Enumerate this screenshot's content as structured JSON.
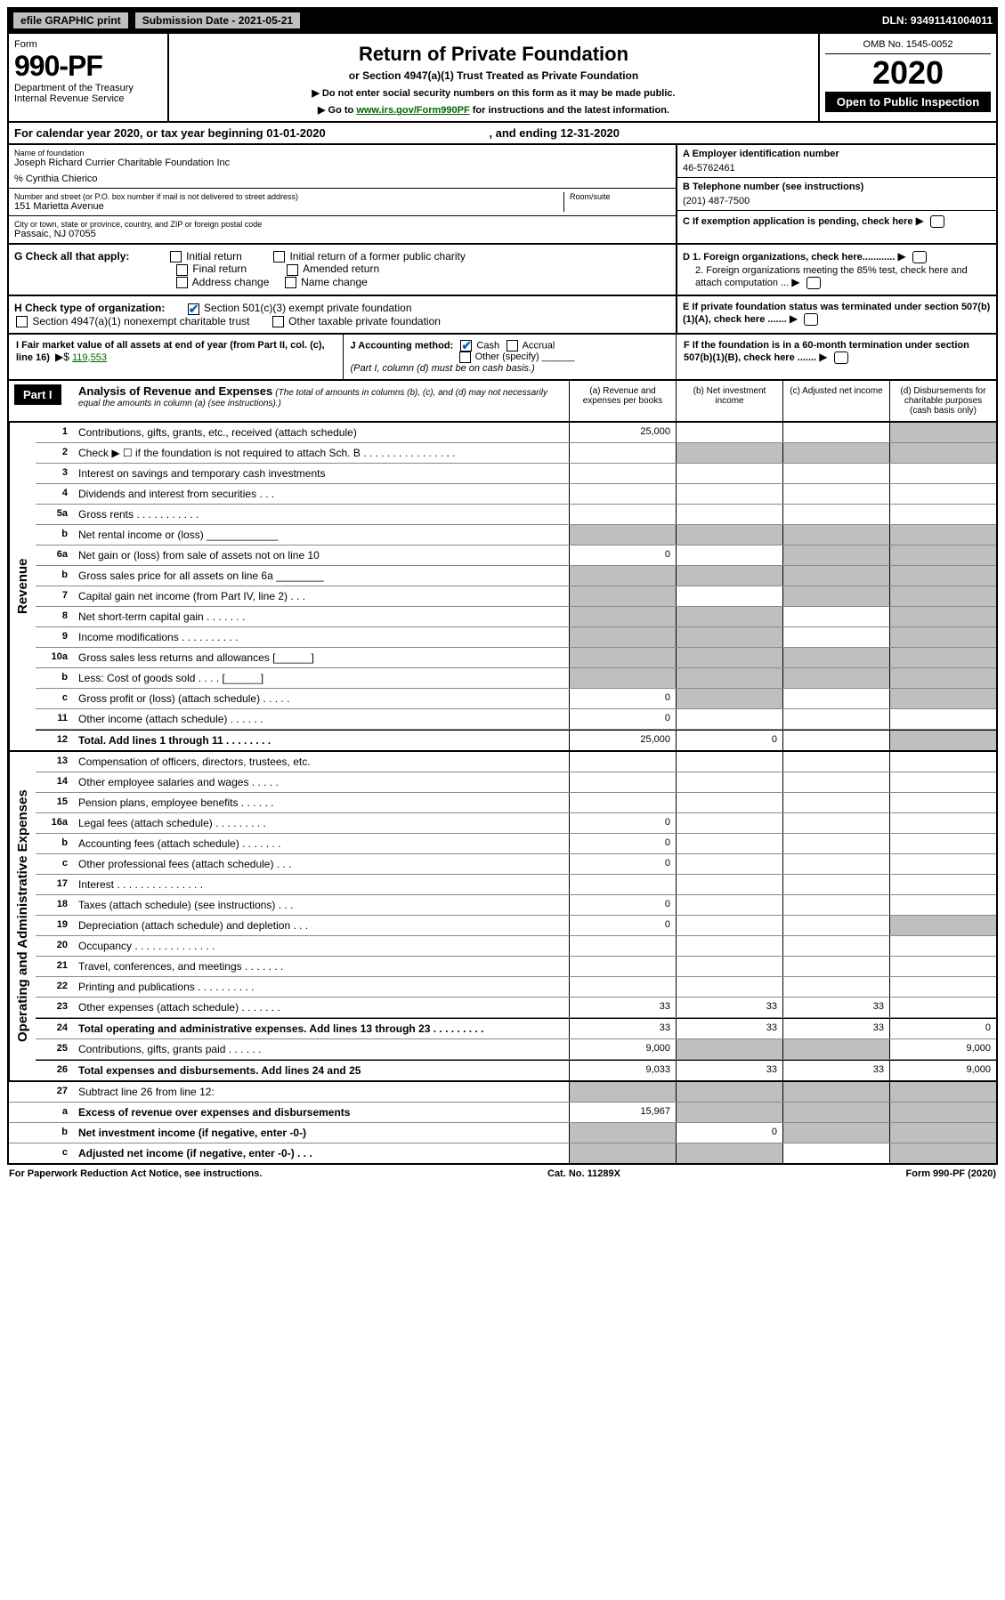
{
  "topbar": {
    "efile": "efile GRAPHIC print",
    "sub_label": "Submission Date - 2021-05-21",
    "dln": "DLN: 93491141004011"
  },
  "header": {
    "form_word": "Form",
    "form_num": "990-PF",
    "dept": "Department of the Treasury",
    "irs": "Internal Revenue Service",
    "title": "Return of Private Foundation",
    "subtitle": "or Section 4947(a)(1) Trust Treated as Private Foundation",
    "note1": "▶ Do not enter social security numbers on this form as it may be made public.",
    "note2_a": "▶ Go to ",
    "note2_link": "www.irs.gov/Form990PF",
    "note2_b": " for instructions and the latest information.",
    "omb": "OMB No. 1545-0052",
    "year": "2020",
    "open": "Open to Public Inspection"
  },
  "cal": {
    "line": "For calendar year 2020, or tax year beginning 01-01-2020",
    "end": ", and ending 12-31-2020"
  },
  "id": {
    "name_label": "Name of foundation",
    "name": "Joseph Richard Currier Charitable Foundation Inc",
    "care": "% Cynthia Chierico",
    "addr_label": "Number and street (or P.O. box number if mail is not delivered to street address)",
    "addr": "151 Marietta Avenue",
    "room_label": "Room/suite",
    "city_label": "City or town, state or province, country, and ZIP or foreign postal code",
    "city": "Passaic, NJ  07055",
    "a_label": "A Employer identification number",
    "a_val": "46-5762461",
    "b_label": "B Telephone number (see instructions)",
    "b_val": "(201) 487-7500",
    "c_label": "C  If exemption application is pending, check here"
  },
  "g": {
    "label": "G Check all that apply:",
    "initial": "Initial return",
    "final": "Final return",
    "addr_change": "Address change",
    "initial_former": "Initial return of a former public charity",
    "amended": "Amended return",
    "name_change": "Name change"
  },
  "h": {
    "label": "H Check type of organization:",
    "s501": "Section 501(c)(3) exempt private foundation",
    "s4947": "Section 4947(a)(1) nonexempt charitable trust",
    "other_tax": "Other taxable private foundation"
  },
  "d": {
    "d1": "D 1. Foreign organizations, check here............",
    "d2": "2. Foreign organizations meeting the 85% test, check here and attach computation ...",
    "e": "E  If private foundation status was terminated under section 507(b)(1)(A), check here .......",
    "f": "F  If the foundation is in a 60-month termination under section 507(b)(1)(B), check here ......."
  },
  "i": {
    "label": "I Fair market value of all assets at end of year (from Part II, col. (c), line 16)",
    "arrow": "▶$",
    "val": "119,553"
  },
  "j": {
    "label": "J Accounting method:",
    "cash": "Cash",
    "accrual": "Accrual",
    "other": "Other (specify)",
    "note": "(Part I, column (d) must be on cash basis.)"
  },
  "part1": {
    "label": "Part I",
    "title": "Analysis of Revenue and Expenses",
    "title_note": " (The total of amounts in columns (b), (c), and (d) may not necessarily equal the amounts in column (a) (see instructions).)",
    "col_a": "(a)   Revenue and expenses per books",
    "col_b": "(b)   Net investment income",
    "col_c": "(c)   Adjusted net income",
    "col_d": "(d)   Disbursements for charitable purposes (cash basis only)"
  },
  "rev_label": "Revenue",
  "exp_label": "Operating and Administrative Expenses",
  "lines": {
    "l1": {
      "n": "1",
      "d": "Contributions, gifts, grants, etc., received (attach schedule)",
      "a": "25,000",
      "grey": [
        "d"
      ]
    },
    "l2": {
      "n": "2",
      "d": "Check ▶ ☐ if the foundation is not required to attach Sch. B     .  .  .  .  .  .  .  .  .  .  .  .  .  .  .  .",
      "grey": [
        "b",
        "c",
        "d"
      ]
    },
    "l3": {
      "n": "3",
      "d": "Interest on savings and temporary cash investments"
    },
    "l4": {
      "n": "4",
      "d": "Dividends and interest from securities   .   .   ."
    },
    "l5a": {
      "n": "5a",
      "d": "Gross rents     .   .   .   .   .   .   .   .   .   .   ."
    },
    "l5b": {
      "n": "b",
      "d": "Net rental income or (loss)  ____________",
      "grey": [
        "a",
        "b",
        "c",
        "d"
      ]
    },
    "l6a": {
      "n": "6a",
      "d": "Net gain or (loss) from sale of assets not on line 10",
      "a": "0",
      "grey": [
        "c",
        "d"
      ]
    },
    "l6b": {
      "n": "b",
      "d": "Gross sales price for all assets on line 6a ________",
      "grey": [
        "a",
        "b",
        "c",
        "d"
      ]
    },
    "l7": {
      "n": "7",
      "d": "Capital gain net income (from Part IV, line 2)  .  .  .",
      "grey": [
        "a",
        "c",
        "d"
      ]
    },
    "l8": {
      "n": "8",
      "d": "Net short-term capital gain   .   .   .   .   .   .   .",
      "grey": [
        "a",
        "b",
        "d"
      ]
    },
    "l9": {
      "n": "9",
      "d": "Income modifications  .  .  .  .  .  .  .  .  .  .",
      "grey": [
        "a",
        "b",
        "d"
      ]
    },
    "l10a": {
      "n": "10a",
      "d": "Gross sales less returns and allowances  [______]",
      "grey": [
        "a",
        "b",
        "c",
        "d"
      ]
    },
    "l10b": {
      "n": "b",
      "d": "Less: Cost of goods sold    .   .   .   .   [______]",
      "grey": [
        "a",
        "b",
        "c",
        "d"
      ]
    },
    "l10c": {
      "n": "c",
      "d": "Gross profit or (loss) (attach schedule)   .   .   .   .   .",
      "a": "0",
      "grey": [
        "b",
        "d"
      ]
    },
    "l11": {
      "n": "11",
      "d": "Other income (attach schedule)    .   .   .   .   .   .",
      "a": "0"
    },
    "l12": {
      "n": "12",
      "d": "Total. Add lines 1 through 11   .   .   .   .   .   .   .   .",
      "a": "25,000",
      "b": "0",
      "grey": [
        "d"
      ],
      "bold": true
    },
    "l13": {
      "n": "13",
      "d": "Compensation of officers, directors, trustees, etc."
    },
    "l14": {
      "n": "14",
      "d": "Other employee salaries and wages   .   .   .   .   ."
    },
    "l15": {
      "n": "15",
      "d": "Pension plans, employee benefits  .   .   .   .   .   ."
    },
    "l16a": {
      "n": "16a",
      "d": "Legal fees (attach schedule) .  .  .  .  .  .  .  .  .",
      "a": "0"
    },
    "l16b": {
      "n": "b",
      "d": "Accounting fees (attach schedule)  .  .  .  .  .  .  .",
      "a": "0"
    },
    "l16c": {
      "n": "c",
      "d": "Other professional fees (attach schedule)   .   .   .",
      "a": "0"
    },
    "l17": {
      "n": "17",
      "d": "Interest  .  .  .  .  .  .  .  .  .  .  .  .  .  .  ."
    },
    "l18": {
      "n": "18",
      "d": "Taxes (attach schedule) (see instructions)    .   .   .",
      "a": "0"
    },
    "l19": {
      "n": "19",
      "d": "Depreciation (attach schedule) and depletion   .   .   .",
      "a": "0",
      "grey": [
        "d"
      ]
    },
    "l20": {
      "n": "20",
      "d": "Occupancy  .  .  .  .  .  .  .  .  .  .  .  .  .  ."
    },
    "l21": {
      "n": "21",
      "d": "Travel, conferences, and meetings  .  .  .  .  .  .  ."
    },
    "l22": {
      "n": "22",
      "d": "Printing and publications  .  .  .  .  .  .  .  .  .  ."
    },
    "l23": {
      "n": "23",
      "d": "Other expenses (attach schedule) .  .  .  .  .  .  .",
      "a": "33",
      "b": "33",
      "c": "33"
    },
    "l24": {
      "n": "24",
      "d": "Total operating and administrative expenses. Add lines 13 through 23   .   .   .   .   .   .   .   .   .",
      "a": "33",
      "b": "33",
      "c": "33",
      "dd": "0",
      "bold": true
    },
    "l25": {
      "n": "25",
      "d": "Contributions, gifts, grants paid    .   .   .   .   .   .",
      "a": "9,000",
      "dd": "9,000",
      "grey": [
        "b",
        "c"
      ]
    },
    "l26": {
      "n": "26",
      "d": "Total expenses and disbursements. Add lines 24 and 25",
      "a": "9,033",
      "b": "33",
      "c": "33",
      "dd": "9,000",
      "bold": true
    },
    "l27": {
      "n": "27",
      "d": "Subtract line 26 from line 12:",
      "grey": [
        "a",
        "b",
        "c",
        "d"
      ]
    },
    "l27a": {
      "n": "a",
      "d": "Excess of revenue over expenses and disbursements",
      "a": "15,967",
      "grey": [
        "b",
        "c",
        "d"
      ],
      "bold": true
    },
    "l27b": {
      "n": "b",
      "d": "Net investment income (if negative, enter -0-)",
      "b": "0",
      "grey": [
        "a",
        "c",
        "d"
      ],
      "bold": true
    },
    "l27c": {
      "n": "c",
      "d": "Adjusted net income (if negative, enter -0-)   .   .   .",
      "grey": [
        "a",
        "b",
        "d"
      ],
      "bold": true
    }
  },
  "footer": {
    "left": "For Paperwork Reduction Act Notice, see instructions.",
    "mid": "Cat. No. 11289X",
    "right": "Form 990-PF (2020)"
  }
}
